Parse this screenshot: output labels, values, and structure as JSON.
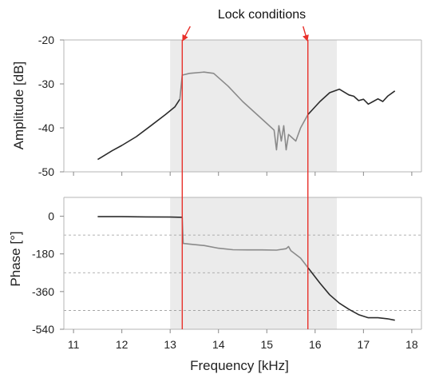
{
  "annotation": "Lock conditions",
  "chart_data": [
    {
      "type": "line",
      "ylabel": "Amplitude [dB]",
      "ylim": [
        -50,
        -20
      ],
      "yticks": [
        -20,
        -30,
        -40,
        -50
      ],
      "xlim": [
        10.8,
        18.2
      ],
      "series": [
        {
          "color": "#2b2b2b",
          "x": [
            11.5,
            11.8,
            12.0,
            12.3,
            12.6,
            12.9,
            13.1,
            13.2
          ],
          "y": [
            -47.2,
            -45.2,
            -44.0,
            -42.0,
            -39.5,
            -37.0,
            -35.2,
            -33.5
          ]
        },
        {
          "color": "#8a8a8a",
          "x": [
            13.2,
            13.25,
            13.4,
            13.7,
            13.9,
            14.2,
            14.5,
            14.8,
            15.0,
            15.15,
            15.2,
            15.25,
            15.3,
            15.35,
            15.4,
            15.45,
            15.5,
            15.6,
            15.7,
            15.85
          ],
          "y": [
            -33.5,
            -28.0,
            -27.6,
            -27.3,
            -27.6,
            -30.5,
            -34.0,
            -37.0,
            -39.0,
            -40.5,
            -45.0,
            -39.5,
            -43.0,
            -39.5,
            -45.0,
            -41.5,
            -42.0,
            -43.0,
            -40.0,
            -37.0
          ]
        },
        {
          "color": "#2b2b2b",
          "x": [
            15.85,
            16.1,
            16.3,
            16.5,
            16.7,
            16.8,
            16.9,
            17.0,
            17.1,
            17.2,
            17.3,
            17.4,
            17.5,
            17.65
          ],
          "y": [
            -37.0,
            -34.0,
            -32.0,
            -31.2,
            -32.5,
            -32.8,
            -33.8,
            -33.5,
            -34.6,
            -34.0,
            -33.4,
            -34.0,
            -32.8,
            -31.6
          ]
        }
      ]
    },
    {
      "type": "line",
      "ylabel": "Phase [°]",
      "ylim": [
        -540,
        90
      ],
      "yticks": [
        0,
        -180,
        -360,
        -540
      ],
      "dashed_gridlines": [
        -90,
        -270,
        -450
      ],
      "xlim": [
        10.8,
        18.2
      ],
      "xlabel": "Frequency [kHz]",
      "xticks": [
        11,
        12,
        13,
        14,
        15,
        16,
        17,
        18
      ],
      "series": [
        {
          "color": "#2b2b2b",
          "x": [
            11.5,
            12.0,
            12.5,
            13.0,
            13.25
          ],
          "y": [
            -2,
            -2,
            -3,
            -4,
            -5
          ]
        },
        {
          "color": "#8a8a8a",
          "x": [
            13.25,
            13.27,
            13.4,
            13.7,
            14.0,
            14.3,
            14.6,
            14.9,
            15.2,
            15.4,
            15.45,
            15.5,
            15.7,
            15.85
          ],
          "y": [
            -5,
            -130,
            -133,
            -140,
            -153,
            -160,
            -161,
            -161,
            -162,
            -155,
            -145,
            -165,
            -200,
            -245
          ]
        },
        {
          "color": "#2b2b2b",
          "x": [
            15.85,
            16.1,
            16.3,
            16.5,
            16.7,
            16.9,
            17.1,
            17.3,
            17.5,
            17.65
          ],
          "y": [
            -245,
            -320,
            -375,
            -415,
            -445,
            -470,
            -485,
            -485,
            -490,
            -497
          ]
        }
      ]
    }
  ],
  "lock_band": {
    "x0": 13.0,
    "x1": 16.45,
    "color": "#ebebeb"
  },
  "lock_lines": {
    "x": [
      13.25,
      15.85
    ],
    "color": "#e8302a"
  }
}
